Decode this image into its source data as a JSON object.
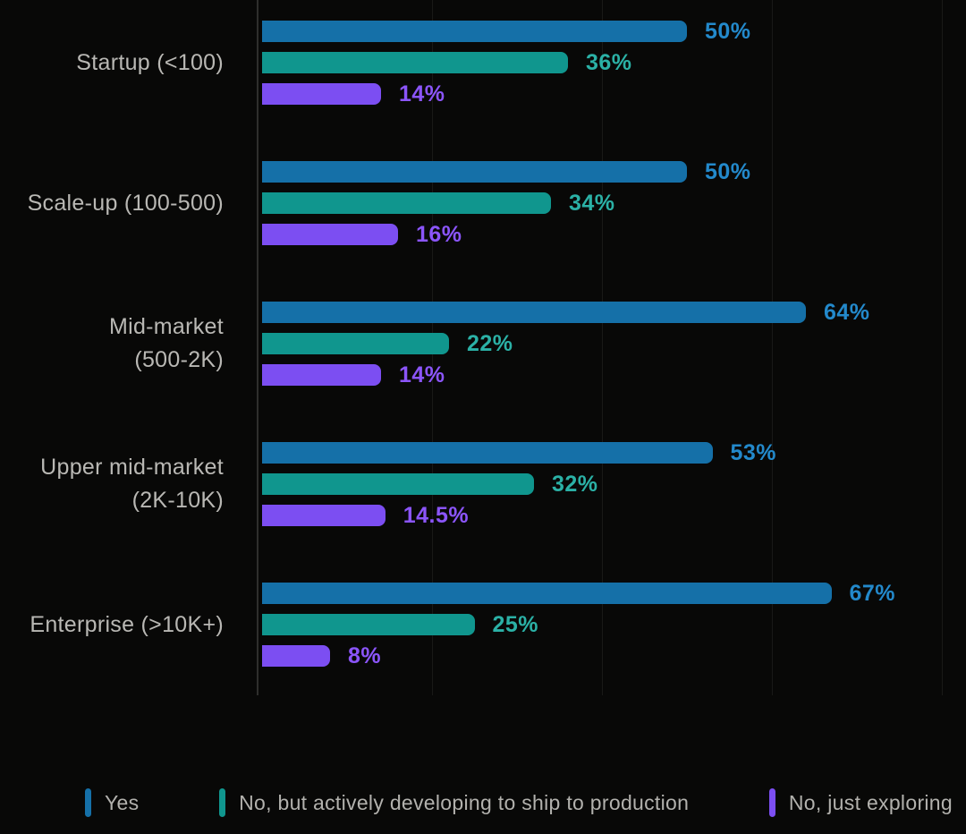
{
  "colors": {
    "background": "#080807",
    "axis_line": "#2e2e2c",
    "gridline": "#191917",
    "category_text": "#b9b8b4",
    "legend_text": "#b2b1ad",
    "bar_yes": "#1570a8",
    "bar_developing": "#10968e",
    "bar_exploring": "#7c4ef2",
    "label_yes": "#2389cb",
    "label_developing": "#2bb1a6",
    "label_exploring": "#8b55fa"
  },
  "chart_data": {
    "type": "bar",
    "orientation": "horizontal",
    "title": "",
    "categories": [
      "Startup (<100)",
      "Scale-up (100-500)",
      "Mid-market (500-2K)",
      "Upper mid-market (2K-10K)",
      "Enterprise (>10K+)"
    ],
    "category_lines": [
      [
        "Startup (<100)"
      ],
      [
        "Scale-up (100-500)"
      ],
      [
        "Mid-market",
        "(500-2K)"
      ],
      [
        "Upper mid-market",
        "(2K-10K)"
      ],
      [
        "Enterprise (>10K+)"
      ]
    ],
    "series": [
      {
        "name": "Yes",
        "key": "yes",
        "values": [
          50,
          50,
          64,
          53,
          67
        ],
        "labels": [
          "50%",
          "50%",
          "64%",
          "53%",
          "67%"
        ],
        "color": "bar_yes",
        "label_color": "label_yes"
      },
      {
        "name": "No, but actively developing to ship to production",
        "key": "no-developing",
        "values": [
          36,
          34,
          22,
          32,
          25
        ],
        "labels": [
          "36%",
          "34%",
          "22%",
          "32%",
          "25%"
        ],
        "color": "bar_developing",
        "label_color": "label_developing"
      },
      {
        "name": "No, just exploring",
        "key": "no-exploring",
        "values": [
          14,
          16,
          14,
          14.5,
          8
        ],
        "labels": [
          "14%",
          "16%",
          "14%",
          "14.5%",
          "8%"
        ],
        "color": "bar_exploring",
        "label_color": "label_exploring"
      }
    ],
    "value_unit": "%",
    "axis": {
      "min": 0,
      "max": 80,
      "gridlines_percent": [
        20,
        40,
        60,
        80
      ],
      "grid": true
    },
    "legend_position": "bottom"
  }
}
